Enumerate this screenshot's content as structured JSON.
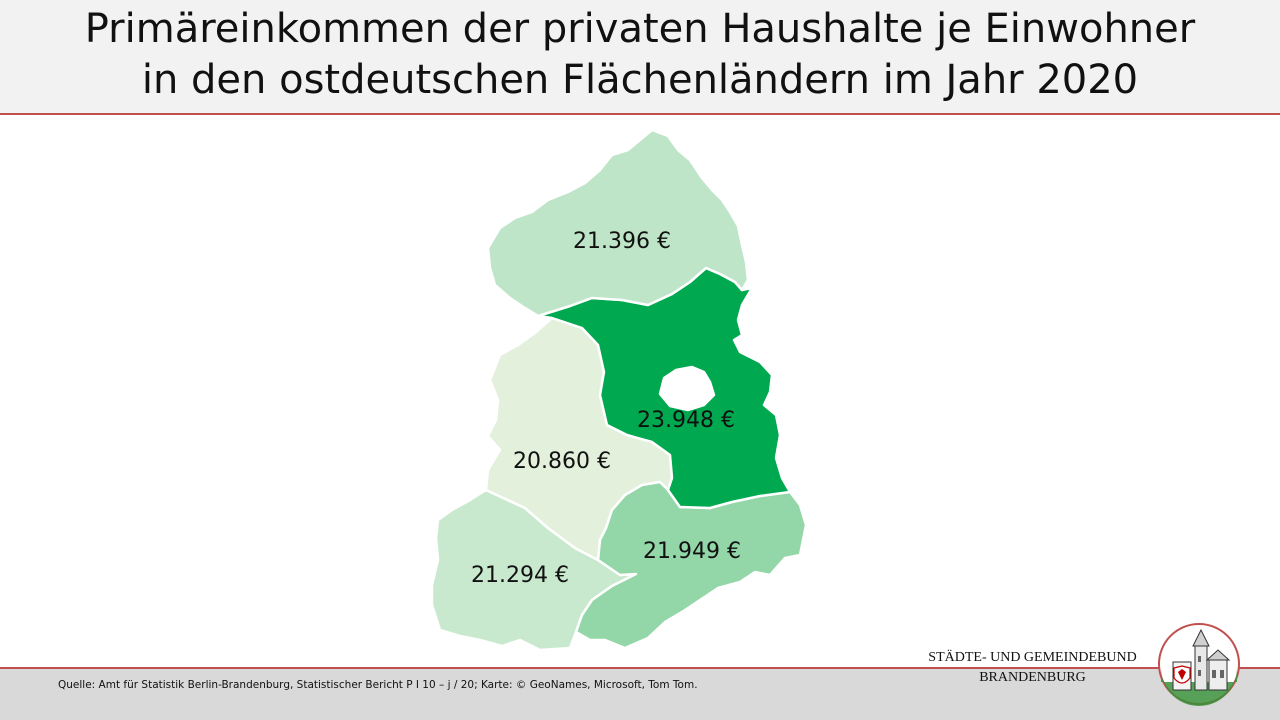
{
  "title": {
    "line1": "Primäreinkommen der privaten Haushalte je Einwohner",
    "line2": "in den ostdeutschen Flächenländern im Jahr 2020"
  },
  "colors": {
    "accent_line": "#c0504d",
    "mecklenburg_vorpommern": "#bfe5c8",
    "brandenburg": "#00a84f",
    "berlin": "#ffffff",
    "sachsen_anhalt": "#e2f0dc",
    "sachsen": "#93d7a9",
    "thueringen": "#c9e9cf"
  },
  "map": {
    "regions": [
      {
        "id": "mecklenburg-vorpommern",
        "value": "21.396 €"
      },
      {
        "id": "brandenburg",
        "value": "23.948 €"
      },
      {
        "id": "sachsen-anhalt",
        "value": "20.860 €"
      },
      {
        "id": "sachsen",
        "value": "21.949 €"
      },
      {
        "id": "thueringen",
        "value": "21.294 €"
      }
    ]
  },
  "footer": {
    "source": "Quelle: Amt für Statistik Berlin-Brandenburg, Statistischer Bericht P I 10 – j / 20; Karte: © GeoNames,  Microsoft, Tom Tom."
  },
  "organization": {
    "line1": "STÄDTE-  UND GEMEINDEBUND",
    "line2": "BRANDENBURG",
    "logo_icon": "coat-of-arms-logo"
  }
}
